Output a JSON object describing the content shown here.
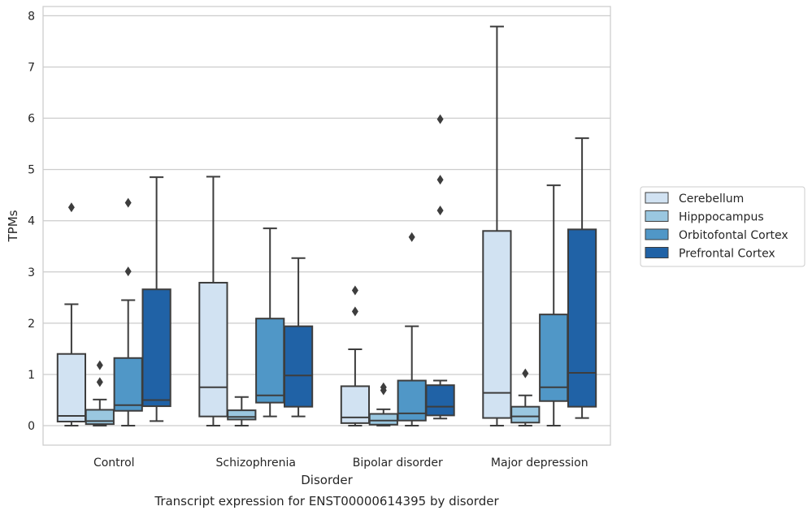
{
  "chart_data": {
    "type": "box",
    "xlabel": "Disorder",
    "ylabel": "TPMs",
    "caption": "Transcript expression for ENST00000614395 by disorder",
    "ylim": [
      -0.38,
      8.18
    ],
    "yticks": [
      0,
      1,
      2,
      3,
      4,
      5,
      6,
      7,
      8
    ],
    "categories": [
      "Control",
      "Schizophrenia",
      "Bipolar disorder",
      "Major depression"
    ],
    "legend_position": "center-right",
    "grid": true,
    "series": [
      {
        "name": "Cerebellum",
        "color": "#d1e2f2",
        "boxes": [
          {
            "whislo": 0.0,
            "q1": 0.08,
            "med": 0.19,
            "q3": 1.4,
            "whishi": 2.37,
            "fliers": [
              4.26
            ]
          },
          {
            "whislo": 0.0,
            "q1": 0.18,
            "med": 0.75,
            "q3": 2.79,
            "whishi": 4.86,
            "fliers": []
          },
          {
            "whislo": 0.0,
            "q1": 0.05,
            "med": 0.16,
            "q3": 0.77,
            "whishi": 1.49,
            "fliers": [
              2.23,
              2.64
            ]
          },
          {
            "whislo": 0.0,
            "q1": 0.15,
            "med": 0.64,
            "q3": 3.8,
            "whishi": 7.79,
            "fliers": []
          }
        ]
      },
      {
        "name": "Hipppocampus",
        "color": "#9ac7e0",
        "boxes": [
          {
            "whislo": 0.0,
            "q1": 0.03,
            "med": 0.09,
            "q3": 0.31,
            "whishi": 0.51,
            "fliers": [
              0.85,
              1.18
            ]
          },
          {
            "whislo": 0.0,
            "q1": 0.12,
            "med": 0.17,
            "q3": 0.3,
            "whishi": 0.56,
            "fliers": []
          },
          {
            "whislo": 0.0,
            "q1": 0.02,
            "med": 0.1,
            "q3": 0.23,
            "whishi": 0.32,
            "fliers": [
              0.69,
              0.75
            ]
          },
          {
            "whislo": 0.0,
            "q1": 0.06,
            "med": 0.18,
            "q3": 0.37,
            "whishi": 0.59,
            "fliers": [
              1.02
            ]
          }
        ]
      },
      {
        "name": "Orbitofontal Cortex",
        "color": "#5097c7",
        "boxes": [
          {
            "whislo": 0.0,
            "q1": 0.29,
            "med": 0.4,
            "q3": 1.32,
            "whishi": 2.45,
            "fliers": [
              3.01,
              4.35
            ]
          },
          {
            "whislo": 0.18,
            "q1": 0.45,
            "med": 0.59,
            "q3": 2.09,
            "whishi": 3.85,
            "fliers": []
          },
          {
            "whislo": 0.0,
            "q1": 0.1,
            "med": 0.24,
            "q3": 0.88,
            "whishi": 1.94,
            "fliers": [
              3.68
            ]
          },
          {
            "whislo": 0.0,
            "q1": 0.48,
            "med": 0.75,
            "q3": 2.17,
            "whishi": 4.69,
            "fliers": []
          }
        ]
      },
      {
        "name": "Prefrontal Cortex",
        "color": "#2062a6",
        "boxes": [
          {
            "whislo": 0.09,
            "q1": 0.38,
            "med": 0.5,
            "q3": 2.66,
            "whishi": 4.85,
            "fliers": []
          },
          {
            "whislo": 0.18,
            "q1": 0.37,
            "med": 0.98,
            "q3": 1.94,
            "whishi": 3.27,
            "fliers": []
          },
          {
            "whislo": 0.14,
            "q1": 0.2,
            "med": 0.37,
            "q3": 0.79,
            "whishi": 0.88,
            "fliers": [
              4.2,
              4.8,
              5.98
            ]
          },
          {
            "whislo": 0.15,
            "q1": 0.37,
            "med": 1.03,
            "q3": 3.83,
            "whishi": 5.61,
            "fliers": []
          }
        ]
      }
    ]
  }
}
